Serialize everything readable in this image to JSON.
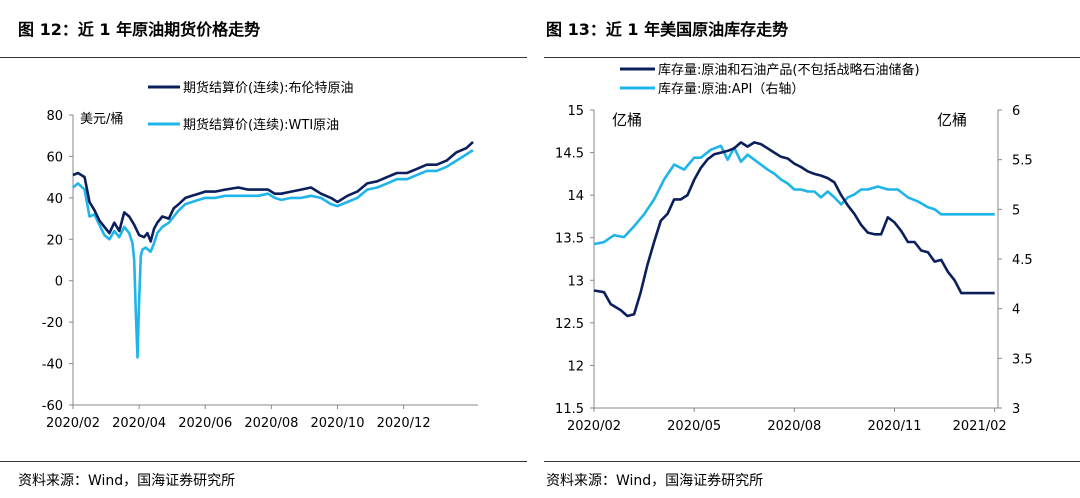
{
  "left_panel": {
    "title": "图 12：近 1 年原油期货价格走势",
    "source": "资料来源：Wind，国海证券研究所"
  },
  "right_panel": {
    "title": "图 13：近 1 年美国原油库存走势",
    "source": "资料来源：Wind，国海证券研究所"
  },
  "colors": {
    "dark": "#0b1f5c",
    "light": "#1fb4ea"
  },
  "chart_data": [
    {
      "type": "line",
      "unit_label": "美元/桶",
      "ylim": [
        -60,
        80
      ],
      "yticks": [
        "80",
        "60",
        "40",
        "20",
        "0",
        "-20",
        "-40",
        "-60"
      ],
      "ytick_values": [
        80,
        60,
        40,
        20,
        0,
        -20,
        -40,
        -60
      ],
      "xticks": [
        "2020/02",
        "2020/04",
        "2020/06",
        "2020/08",
        "2020/10",
        "2020/12"
      ],
      "xtick_index": [
        0,
        2,
        4,
        6,
        8,
        10
      ],
      "xlim_months": [
        0,
        12.25
      ],
      "series": [
        {
          "name": "期货结算价(连续):布伦特原油",
          "x": [
            0,
            0.15,
            0.35,
            0.5,
            0.65,
            0.8,
            0.95,
            1.1,
            1.25,
            1.4,
            1.55,
            1.7,
            1.85,
            2.0,
            2.15,
            2.25,
            2.35,
            2.45,
            2.55,
            2.7,
            2.9,
            3.05,
            3.2,
            3.4,
            3.6,
            3.8,
            4.0,
            4.3,
            4.6,
            5.0,
            5.3,
            5.6,
            5.9,
            6.1,
            6.3,
            6.6,
            6.9,
            7.2,
            7.5,
            7.8,
            8.0,
            8.3,
            8.6,
            8.9,
            9.2,
            9.5,
            9.8,
            10.1,
            10.4,
            10.7,
            11.0,
            11.3,
            11.6,
            11.9,
            12.1
          ],
          "values": [
            51,
            52,
            50,
            38,
            34,
            29,
            26,
            23,
            28,
            24,
            33,
            31,
            27,
            22,
            21,
            23,
            19,
            25,
            28,
            31,
            30,
            35,
            37,
            40,
            41,
            42,
            43,
            43,
            44,
            45,
            44,
            44,
            44,
            42,
            42,
            43,
            44,
            45,
            42,
            40,
            38,
            41,
            43,
            47,
            48,
            50,
            52,
            52,
            54,
            56,
            56,
            58,
            62,
            64,
            67
          ]
        },
        {
          "name": "期货结算价(连续):WTI原油",
          "x": [
            0,
            0.15,
            0.35,
            0.5,
            0.65,
            0.8,
            0.95,
            1.1,
            1.25,
            1.4,
            1.55,
            1.7,
            1.8,
            1.85,
            1.9,
            1.95,
            2.0,
            2.05,
            2.1,
            2.2,
            2.35,
            2.45,
            2.55,
            2.7,
            2.9,
            3.05,
            3.2,
            3.4,
            3.6,
            3.8,
            4.0,
            4.3,
            4.6,
            5.0,
            5.3,
            5.6,
            5.9,
            6.1,
            6.3,
            6.6,
            6.9,
            7.2,
            7.5,
            7.8,
            8.0,
            8.3,
            8.6,
            8.9,
            9.2,
            9.5,
            9.8,
            10.1,
            10.4,
            10.7,
            11.0,
            11.3,
            11.6,
            11.9,
            12.1
          ],
          "values": [
            45,
            47,
            44,
            31,
            32,
            27,
            22,
            20,
            24,
            21,
            26,
            23,
            18,
            10,
            -15,
            -37,
            -10,
            12,
            15,
            16,
            14,
            18,
            23,
            26,
            28,
            31,
            34,
            37,
            38,
            39,
            40,
            40,
            41,
            41,
            41,
            41,
            42,
            40,
            39,
            40,
            40,
            41,
            40,
            37,
            36,
            38,
            40,
            44,
            45,
            47,
            49,
            49,
            51,
            53,
            53,
            55,
            58,
            61,
            63
          ]
        }
      ]
    },
    {
      "type": "line",
      "left_unit": "亿桶",
      "right_unit": "亿桶",
      "ylim": [
        11.5,
        15
      ],
      "y2lim": [
        3,
        6
      ],
      "yticks": [
        "15",
        "14.5",
        "14",
        "13.5",
        "13",
        "12.5",
        "12",
        "11.5"
      ],
      "ytick_values": [
        15,
        14.5,
        14,
        13.5,
        13,
        12.5,
        12,
        11.5
      ],
      "y2ticks": [
        "6",
        "5.5",
        "5",
        "4.5",
        "4",
        "3.5",
        "3"
      ],
      "y2tick_values": [
        6,
        5.5,
        5,
        4.5,
        4,
        3.5,
        3
      ],
      "xticks": [
        "2020/02",
        "2020/05",
        "2020/08",
        "2020/11",
        "2021/02"
      ],
      "xtick_index": [
        0,
        3,
        6,
        9,
        12
      ],
      "xlim_months": [
        0,
        12.1
      ],
      "series": [
        {
          "name": "库存量:原油和石油产品(不包括战略石油储备)",
          "axis": "left",
          "x": [
            0,
            0.3,
            0.5,
            0.8,
            1.0,
            1.2,
            1.4,
            1.6,
            1.8,
            2.0,
            2.2,
            2.4,
            2.6,
            2.8,
            3.0,
            3.2,
            3.4,
            3.6,
            3.8,
            4.0,
            4.2,
            4.4,
            4.6,
            4.8,
            5.0,
            5.2,
            5.4,
            5.6,
            5.8,
            6.0,
            6.2,
            6.4,
            6.6,
            6.8,
            7.0,
            7.2,
            7.4,
            7.6,
            7.8,
            8.0,
            8.2,
            8.4,
            8.6,
            8.8,
            9.0,
            9.2,
            9.4,
            9.6,
            9.8,
            10.0,
            10.2,
            10.4,
            10.6,
            10.8,
            11.0,
            11.2,
            11.4,
            11.6,
            11.8,
            12.0
          ],
          "values": [
            12.88,
            12.86,
            12.72,
            12.65,
            12.58,
            12.6,
            12.86,
            13.18,
            13.45,
            13.7,
            13.78,
            13.95,
            13.95,
            14.0,
            14.18,
            14.32,
            14.42,
            14.48,
            14.5,
            14.52,
            14.55,
            14.62,
            14.57,
            14.62,
            14.6,
            14.55,
            14.5,
            14.45,
            14.43,
            14.37,
            14.33,
            14.28,
            14.25,
            14.23,
            14.2,
            14.15,
            14.0,
            13.88,
            13.78,
            13.65,
            13.56,
            13.54,
            13.54,
            13.74,
            13.68,
            13.58,
            13.45,
            13.45,
            13.35,
            13.33,
            13.22,
            13.24,
            13.1,
            13.0,
            12.85,
            12.85,
            12.85,
            12.85,
            12.85,
            12.85
          ]
        },
        {
          "name": "库存量:原油:API（右轴）",
          "axis": "right",
          "x": [
            0,
            0.3,
            0.6,
            0.9,
            1.2,
            1.5,
            1.8,
            2.1,
            2.4,
            2.7,
            3.0,
            3.2,
            3.5,
            3.8,
            4.0,
            4.2,
            4.4,
            4.6,
            4.8,
            5.0,
            5.2,
            5.4,
            5.6,
            5.8,
            6.0,
            6.2,
            6.4,
            6.6,
            6.8,
            7.0,
            7.2,
            7.4,
            7.6,
            7.8,
            8.0,
            8.2,
            8.5,
            8.8,
            9.1,
            9.4,
            9.7,
            10.0,
            10.2,
            10.4,
            10.6,
            10.8,
            11.0,
            11.2,
            11.4,
            11.6,
            11.8,
            12.0
          ],
          "values": [
            4.65,
            4.67,
            4.74,
            4.72,
            4.83,
            4.95,
            5.1,
            5.3,
            5.45,
            5.4,
            5.52,
            5.52,
            5.6,
            5.64,
            5.5,
            5.62,
            5.48,
            5.55,
            5.5,
            5.45,
            5.4,
            5.36,
            5.3,
            5.26,
            5.2,
            5.2,
            5.18,
            5.18,
            5.12,
            5.18,
            5.12,
            5.05,
            5.12,
            5.15,
            5.2,
            5.2,
            5.23,
            5.2,
            5.2,
            5.12,
            5.08,
            5.02,
            5.0,
            4.95,
            4.95,
            4.95,
            4.95,
            4.95,
            4.95,
            4.95,
            4.95,
            4.95
          ]
        }
      ]
    }
  ]
}
